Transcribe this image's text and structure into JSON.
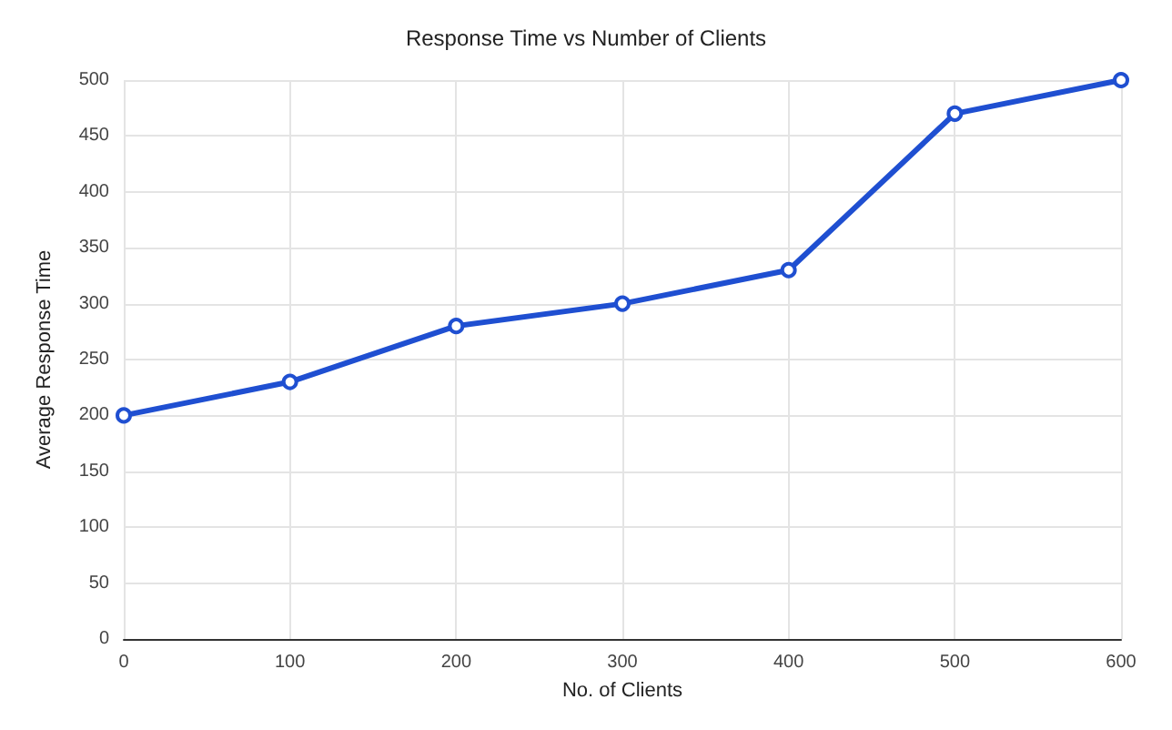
{
  "chart_data": {
    "type": "line",
    "title": "Response Time vs Number of Clients",
    "xlabel": "No. of Clients",
    "ylabel": "Average Response Time",
    "x": [
      0,
      100,
      200,
      300,
      400,
      500,
      600
    ],
    "series": [
      {
        "color": "#1f4fd1",
        "values": [
          200,
          230,
          280,
          300,
          330,
          470,
          500
        ]
      }
    ],
    "xlim": [
      0,
      600
    ],
    "xticks": [
      0,
      100,
      200,
      300,
      400,
      500,
      600
    ],
    "ylim": [
      0,
      500
    ],
    "yticks": [
      0,
      50,
      100,
      150,
      200,
      250,
      300,
      350,
      400,
      450,
      500
    ],
    "grid": true,
    "marker": "circle",
    "line_style": "solid"
  }
}
